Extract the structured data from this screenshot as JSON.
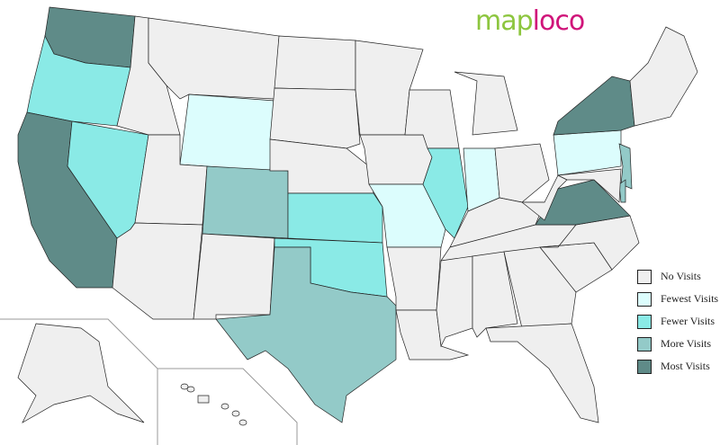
{
  "logo": {
    "part1": "map",
    "part2": "loco"
  },
  "legend": [
    {
      "label": "No Visits",
      "color": "#efefef"
    },
    {
      "label": "Fewest Visits",
      "color": "#dcfdfd"
    },
    {
      "label": "Fewer Visits",
      "color": "#8aeae6"
    },
    {
      "label": "More Visits",
      "color": "#93cac8"
    },
    {
      "label": "Most Visits",
      "color": "#5f8b88"
    }
  ],
  "states": {
    "WA": 4,
    "OR": 2,
    "CA": 4,
    "NV": 2,
    "ID": 0,
    "MT": 0,
    "WY": 1,
    "UT": 0,
    "AZ": 0,
    "CO": 3,
    "NM": 0,
    "ND": 0,
    "SD": 0,
    "NE": 0,
    "KS": 2,
    "OK": 2,
    "TX": 3,
    "MN": 0,
    "IA": 0,
    "MO": 1,
    "AR": 0,
    "LA": 0,
    "WI": 0,
    "IL": 2,
    "MI": 0,
    "IN": 1,
    "OH": 0,
    "KY": 0,
    "TN": 0,
    "MS": 0,
    "AL": 0,
    "GA": 0,
    "FL": 0,
    "SC": 0,
    "NC": 0,
    "VA": 4,
    "WV": 0,
    "PA": 1,
    "NY": 4,
    "NJ": 3,
    "DE": 3,
    "MD": 0,
    "NE_REGION": 0,
    "AK": 0,
    "HI": 0
  }
}
